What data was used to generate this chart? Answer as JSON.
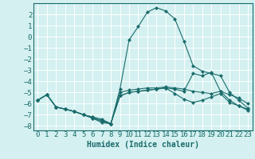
{
  "xlabel": "Humidex (Indice chaleur)",
  "bg_color": "#d4f0f0",
  "grid_color": "#ffffff",
  "line_color": "#1a6b6b",
  "marker": "D",
  "markersize": 2.2,
  "linewidth": 0.8,
  "x": [
    0,
    1,
    2,
    3,
    4,
    5,
    6,
    7,
    8,
    9,
    10,
    11,
    12,
    13,
    14,
    15,
    16,
    17,
    18,
    19,
    20,
    21,
    22,
    23
  ],
  "lines": [
    [
      -5.7,
      -5.2,
      -6.3,
      -6.5,
      -6.7,
      -7.0,
      -7.2,
      -7.6,
      -7.8,
      -5.0,
      -4.8,
      -4.7,
      -4.6,
      -4.6,
      -4.5,
      -4.6,
      -4.7,
      -4.9,
      -5.0,
      -5.1,
      -4.9,
      -5.2,
      -5.5,
      -6.0
    ],
    [
      -5.7,
      -5.2,
      -6.3,
      -6.5,
      -6.7,
      -7.0,
      -7.2,
      -7.4,
      -7.8,
      -5.3,
      -5.0,
      -4.9,
      -4.8,
      -4.7,
      -4.6,
      -5.1,
      -5.6,
      -5.9,
      -5.7,
      -5.4,
      -5.1,
      -5.9,
      -6.2,
      -6.6
    ],
    [
      -5.7,
      -5.2,
      -6.3,
      -6.5,
      -6.7,
      -7.0,
      -7.3,
      -7.5,
      -7.8,
      -4.7,
      -0.3,
      0.9,
      2.2,
      2.6,
      2.3,
      1.6,
      -0.4,
      -2.6,
      -3.1,
      -3.3,
      -3.5,
      -5.0,
      -5.7,
      -6.4
    ],
    [
      -5.7,
      -5.2,
      -6.3,
      -6.5,
      -6.7,
      -7.0,
      -7.3,
      -7.7,
      -7.8,
      -5.3,
      -5.0,
      -4.9,
      -4.8,
      -4.7,
      -4.6,
      -4.7,
      -4.9,
      -3.3,
      -3.5,
      -3.2,
      -4.9,
      -5.7,
      -6.2,
      -6.5
    ]
  ],
  "ylim": [
    -8.4,
    3.0
  ],
  "xlim": [
    -0.5,
    23.5
  ],
  "yticks": [
    2,
    1,
    0,
    -1,
    -2,
    -3,
    -4,
    -5,
    -6,
    -7,
    -8
  ],
  "xticks": [
    0,
    1,
    2,
    3,
    4,
    5,
    6,
    7,
    8,
    9,
    10,
    11,
    12,
    13,
    14,
    15,
    16,
    17,
    18,
    19,
    20,
    21,
    22,
    23
  ],
  "fontsize": 6.5,
  "xlabel_fontsize": 7.0
}
